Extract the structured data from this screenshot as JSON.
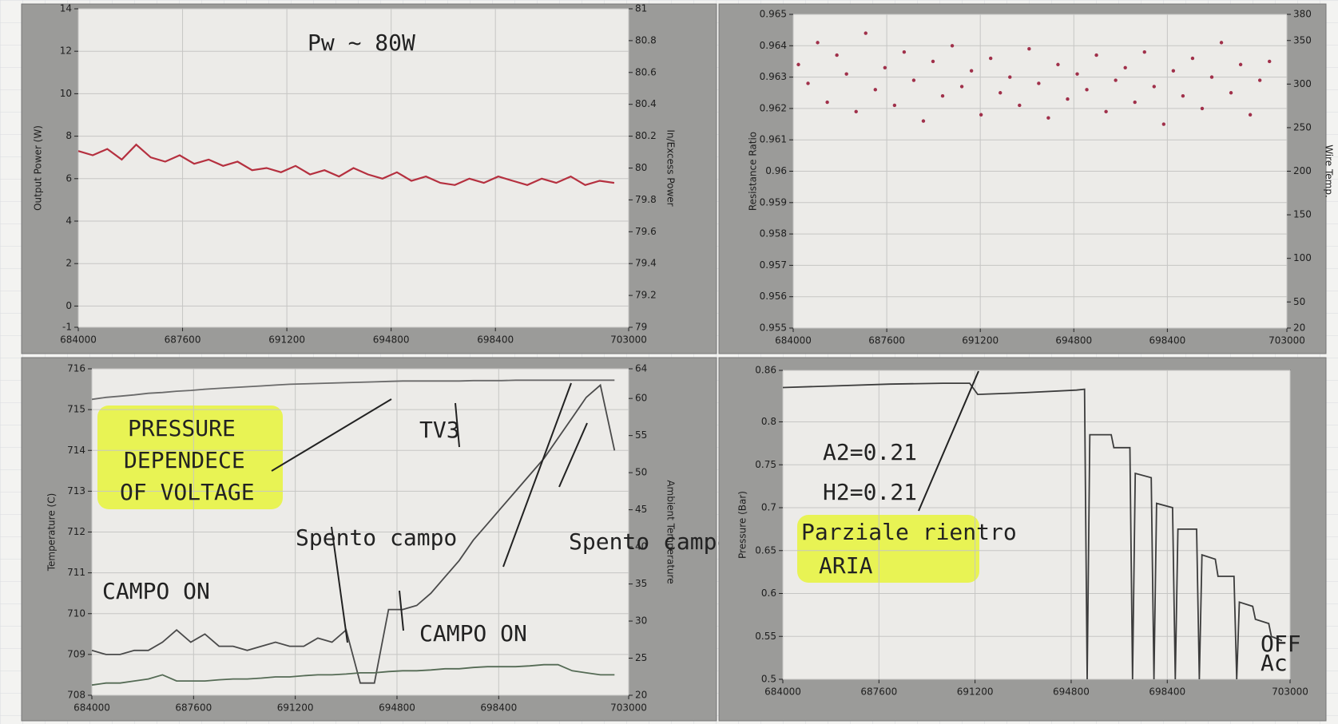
{
  "chart_data": [
    {
      "type": "line",
      "ylabel": "Output Power (W)",
      "y2label": "In/Excess Power",
      "x": [
        684000,
        684500,
        685000,
        685500,
        686000,
        686500,
        687000,
        687500,
        688000,
        688500,
        689000,
        689500,
        690000,
        690500,
        691000,
        691500,
        692000,
        692500,
        693000,
        693500,
        694000,
        694500,
        695000,
        695500,
        696000,
        696500,
        697000,
        697500,
        698000,
        698500,
        699000,
        699500,
        700000,
        700500,
        701000,
        701500,
        702000,
        702500
      ],
      "series": [
        {
          "color": "#b5303f",
          "values": [
            7.3,
            7.1,
            7.4,
            6.9,
            7.6,
            7.0,
            6.8,
            7.1,
            6.7,
            6.9,
            6.6,
            6.8,
            6.4,
            6.5,
            6.3,
            6.6,
            6.2,
            6.4,
            6.1,
            6.5,
            6.2,
            6.0,
            6.3,
            5.9,
            6.1,
            5.8,
            5.7,
            6.0,
            5.8,
            6.1,
            5.9,
            5.7,
            6.0,
            5.8,
            6.1,
            5.7,
            5.9,
            5.8
          ]
        }
      ],
      "xlim": [
        684000,
        703000
      ],
      "xticks": [
        684000,
        687600,
        691200,
        694800,
        698400,
        703000
      ],
      "ylim": [
        -1,
        14
      ],
      "yticks": [
        -1,
        0,
        2,
        4,
        6,
        8,
        10,
        12,
        14
      ],
      "y2lim": [
        79,
        81
      ],
      "y2ticks": [
        79,
        79.2,
        79.4,
        79.6,
        79.8,
        80,
        80.2,
        80.4,
        80.6,
        80.8,
        81
      ],
      "grid": true,
      "annotations": [
        "Pw ~ 80W"
      ]
    },
    {
      "type": "scatter",
      "ylabel": "Resistance Ratio",
      "y2label": "Wire Temp.",
      "x": [
        684200,
        684570,
        684940,
        685310,
        685680,
        686050,
        686420,
        686790,
        687160,
        687530,
        687900,
        688270,
        688640,
        689010,
        689380,
        689750,
        690120,
        690490,
        690860,
        691230,
        691600,
        691970,
        692340,
        692710,
        693080,
        693450,
        693820,
        694190,
        694560,
        694930,
        695300,
        695670,
        696040,
        696410,
        696780,
        697150,
        697520,
        697890,
        698260,
        698630,
        699000,
        699370,
        699740,
        700110,
        700480,
        700850,
        701220,
        701590,
        701960,
        702330
      ],
      "series": [
        {
          "color": "#a0304a",
          "values": [
            0.9634,
            0.9628,
            0.9641,
            0.9622,
            0.9637,
            0.9631,
            0.9619,
            0.9644,
            0.9626,
            0.9633,
            0.9621,
            0.9638,
            0.9629,
            0.9616,
            0.9635,
            0.9624,
            0.964,
            0.9627,
            0.9632,
            0.9618,
            0.9636,
            0.9625,
            0.963,
            0.9621,
            0.9639,
            0.9628,
            0.9617,
            0.9634,
            0.9623,
            0.9631,
            0.9626,
            0.9637,
            0.9619,
            0.9629,
            0.9633,
            0.9622,
            0.9638,
            0.9627,
            0.9615,
            0.9632,
            0.9624,
            0.9636,
            0.962,
            0.963,
            0.9641,
            0.9625,
            0.9634,
            0.9618,
            0.9629,
            0.9635
          ]
        }
      ],
      "xlim": [
        684000,
        703000
      ],
      "xticks": [
        684000,
        687600,
        691200,
        694800,
        698400,
        703000
      ],
      "ylim": [
        0.955,
        0.965
      ],
      "yticks": [
        0.955,
        0.956,
        0.957,
        0.958,
        0.959,
        0.96,
        0.961,
        0.962,
        0.963,
        0.964,
        0.965
      ],
      "y2lim": [
        20,
        380
      ],
      "y2ticks": [
        20,
        50,
        100,
        150,
        200,
        250,
        300,
        350,
        380
      ],
      "grid": true,
      "annotations": []
    },
    {
      "type": "line",
      "ylabel": "Temperature (C)",
      "y2label": "Ambient Temperature",
      "x": [
        684000,
        684500,
        685000,
        685500,
        686000,
        686500,
        687000,
        687500,
        688000,
        688500,
        689000,
        689500,
        690000,
        690500,
        691000,
        691500,
        692000,
        692500,
        693000,
        693500,
        694000,
        694500,
        695000,
        695500,
        696000,
        696500,
        697000,
        697500,
        698000,
        698500,
        699000,
        699500,
        700000,
        700500,
        701000,
        701500,
        702000,
        702500
      ],
      "series": [
        {
          "color": "#4a4a4a",
          "values": [
            709.1,
            709.0,
            709.0,
            709.1,
            709.1,
            709.3,
            709.6,
            709.3,
            709.5,
            709.2,
            709.2,
            709.1,
            709.2,
            709.3,
            709.2,
            709.2,
            709.4,
            709.3,
            709.6,
            708.3,
            708.3,
            710.1,
            710.1,
            710.2,
            710.5,
            710.9,
            711.3,
            711.8,
            712.2,
            712.6,
            713.0,
            713.4,
            713.8,
            714.3,
            714.8,
            715.3,
            715.6,
            714.0
          ]
        },
        {
          "color": "#6a6a6a",
          "values": [
            715.25,
            715.3,
            715.33,
            715.36,
            715.4,
            715.42,
            715.45,
            715.47,
            715.5,
            715.52,
            715.54,
            715.56,
            715.58,
            715.6,
            715.62,
            715.63,
            715.64,
            715.65,
            715.66,
            715.67,
            715.68,
            715.69,
            715.7,
            715.7,
            715.7,
            715.7,
            715.7,
            715.71,
            715.71,
            715.71,
            715.72,
            715.72,
            715.72,
            715.72,
            715.72,
            715.72,
            715.72,
            715.72
          ]
        },
        {
          "color": "#556b55",
          "values": [
            708.25,
            708.3,
            708.3,
            708.35,
            708.4,
            708.5,
            708.35,
            708.35,
            708.35,
            708.38,
            708.4,
            708.4,
            708.42,
            708.45,
            708.45,
            708.48,
            708.5,
            708.5,
            708.52,
            708.55,
            708.55,
            708.58,
            708.6,
            708.6,
            708.62,
            708.65,
            708.65,
            708.68,
            708.7,
            708.7,
            708.7,
            708.72,
            708.75,
            708.75,
            708.6,
            708.55,
            708.5,
            708.5
          ]
        }
      ],
      "xlim": [
        684000,
        703000
      ],
      "xticks": [
        684000,
        687600,
        691200,
        694800,
        698400,
        703000
      ],
      "ylim": [
        708,
        716
      ],
      "yticks": [
        708,
        709,
        710,
        711,
        712,
        713,
        714,
        715,
        716
      ],
      "y2lim": [
        20,
        64
      ],
      "y2ticks": [
        20,
        25,
        30,
        35,
        40,
        45,
        50,
        55,
        60,
        64
      ],
      "grid": true,
      "annotations": [
        "PRESSURE",
        "DEPENDECE",
        "OF VOLTAGE",
        "TV3",
        "Spento campo",
        "CAMPO ON",
        "CAMPO ON",
        "Spento campo"
      ]
    },
    {
      "type": "line",
      "ylabel": "Pressure (Bar)",
      "x": [
        684000,
        686000,
        688000,
        690000,
        691000,
        691300,
        693000,
        695000,
        695300,
        695400,
        695500,
        696300,
        696400,
        697000,
        697100,
        697200,
        697800,
        697900,
        698000,
        698600,
        698700,
        698800,
        699500,
        699600,
        699700,
        700200,
        700300,
        700900,
        701000,
        701100,
        701600,
        701700,
        702200,
        702300,
        702700
      ],
      "series": [
        {
          "color": "#3c3c3c",
          "values": [
            0.84,
            0.842,
            0.844,
            0.845,
            0.845,
            0.832,
            0.834,
            0.837,
            0.838,
            0.5,
            0.785,
            0.785,
            0.77,
            0.77,
            0.5,
            0.74,
            0.735,
            0.5,
            0.705,
            0.7,
            0.5,
            0.675,
            0.675,
            0.5,
            0.645,
            0.64,
            0.62,
            0.62,
            0.5,
            0.59,
            0.585,
            0.57,
            0.565,
            0.55,
            0.545
          ]
        }
      ],
      "xlim": [
        684000,
        703000
      ],
      "xticks": [
        684000,
        687600,
        691200,
        694800,
        698400,
        703000
      ],
      "ylim": [
        0.5,
        0.86
      ],
      "yticks": [
        0.5,
        0.55,
        0.6,
        0.65,
        0.7,
        0.75,
        0.8,
        0.86
      ],
      "grid": true,
      "annotations": [
        "A2=0.21",
        "H2=0.21",
        "Parziale rientro",
        "ARIA",
        "OFF",
        "Ac"
      ]
    }
  ]
}
